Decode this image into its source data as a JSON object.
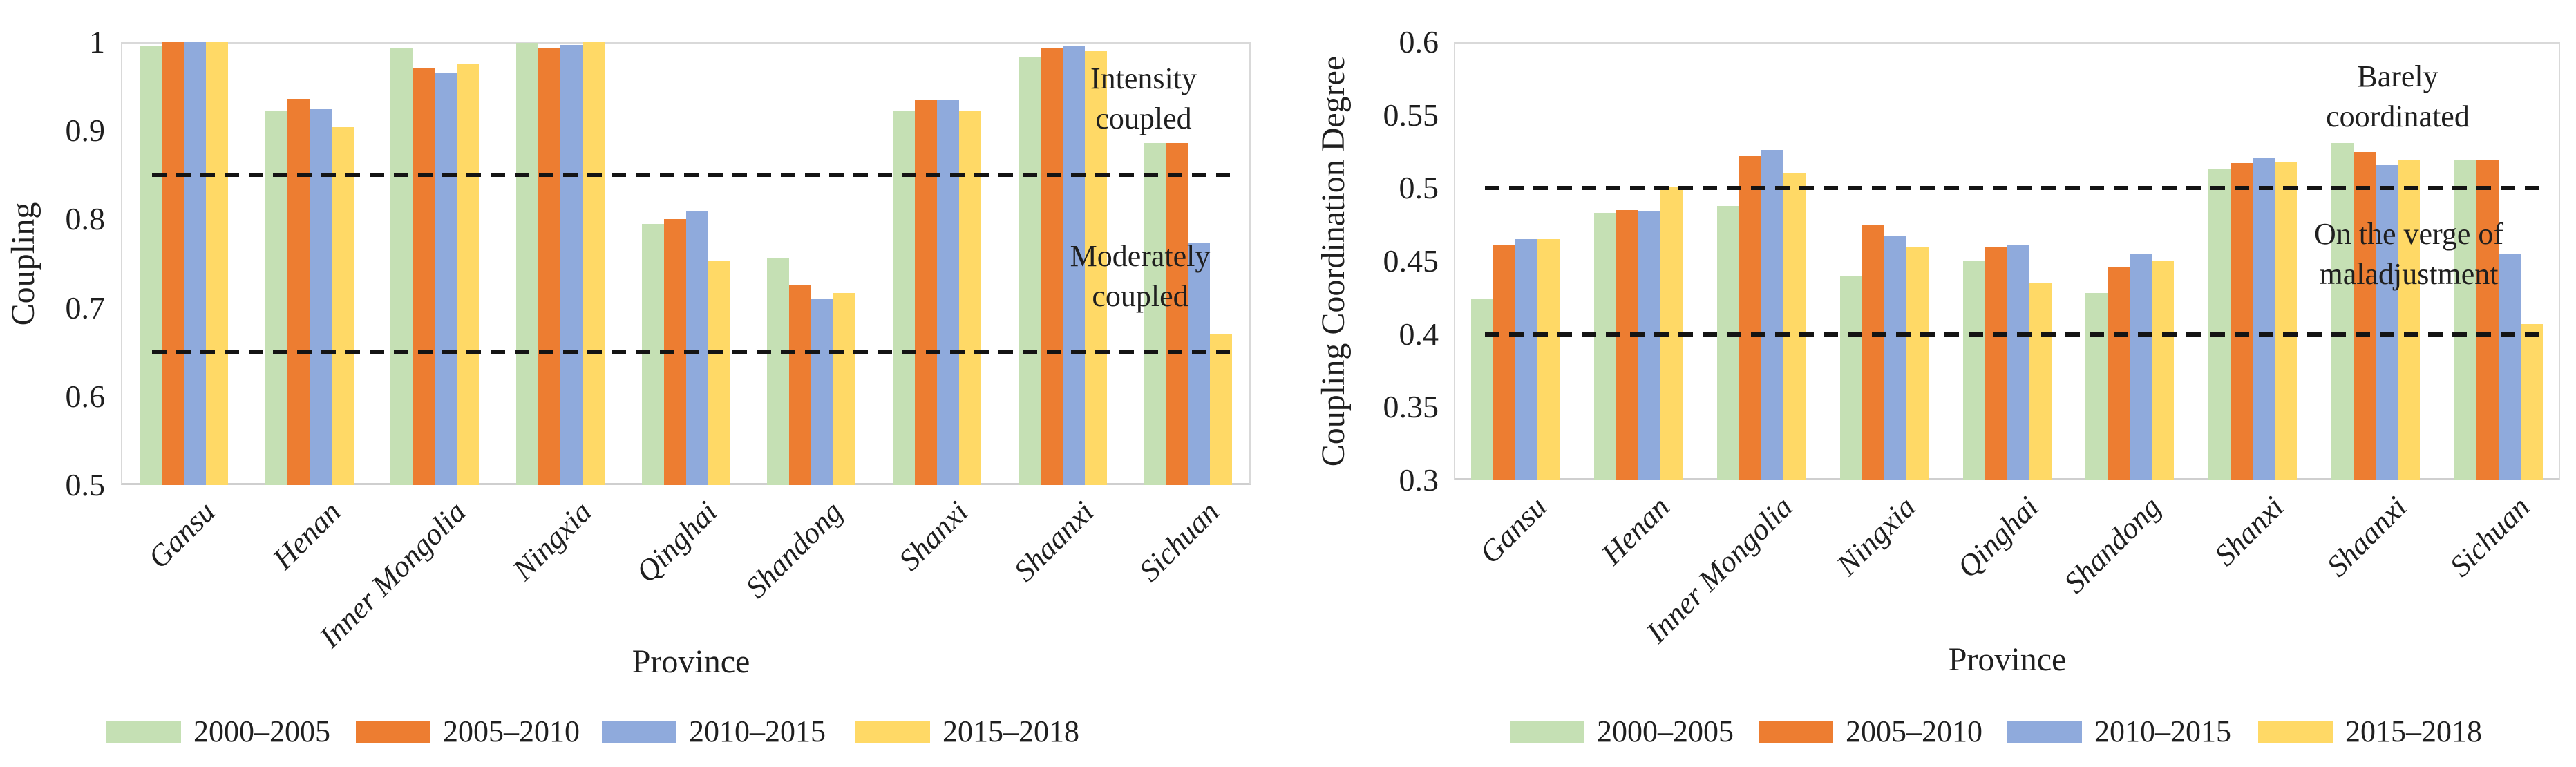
{
  "figure": {
    "background": "#ffffff",
    "text_color": "#1f1f1f"
  },
  "legend": {
    "labels": [
      "2000–2005",
      "2005–2010",
      "2010–2015",
      "2015–2018"
    ],
    "colors": [
      "#c5e0b4",
      "#ed7d31",
      "#8faadc",
      "#ffd966"
    ]
  },
  "chart_data": [
    {
      "type": "bar",
      "title": "",
      "ylabel": "Coupling",
      "xlabel": "Province",
      "ylim": [
        0.5,
        1.0
      ],
      "ytick_labels": [
        "1",
        "0.9",
        "0.8",
        "0.7",
        "0.6",
        "0.5"
      ],
      "grid": false,
      "legend_position": "bottom",
      "categories": [
        "Gansu",
        "Henan",
        "Inner Mongolia",
        "Ningxia",
        "Qinghai",
        "Shandong",
        "Shanxi",
        "Shaanxi",
        "Sichuan"
      ],
      "series": [
        {
          "name": "2000–2005",
          "color": "#c5e0b4",
          "values": [
            0.995,
            0.923,
            0.993,
            0.999,
            0.795,
            0.756,
            0.922,
            0.984,
            0.886
          ]
        },
        {
          "name": "2005–2010",
          "color": "#ed7d31",
          "values": [
            1.0,
            0.936,
            0.97,
            0.993,
            0.8,
            0.726,
            0.935,
            0.993,
            0.886
          ]
        },
        {
          "name": "2010–2015",
          "color": "#8faadc",
          "values": [
            1.0,
            0.924,
            0.966,
            0.997,
            0.81,
            0.71,
            0.935,
            0.995,
            0.773
          ]
        },
        {
          "name": "2015–2018",
          "color": "#ffd966",
          "values": [
            1.0,
            0.904,
            0.975,
            1.0,
            0.753,
            0.717,
            0.922,
            0.99,
            0.671
          ]
        }
      ],
      "reference_lines": [
        {
          "value": 0.85,
          "style": "dashed",
          "color": "#141414"
        },
        {
          "value": 0.65,
          "style": "dashed",
          "color": "#141414"
        }
      ],
      "annotations": [
        {
          "lines": [
            "Intensity",
            "coupled"
          ]
        },
        {
          "lines": [
            "Moderately",
            "coupled"
          ]
        }
      ]
    },
    {
      "type": "bar",
      "title": "",
      "ylabel": "Coupling Coordination Degree",
      "xlabel": "Province",
      "ylim": [
        0.3,
        0.6
      ],
      "ytick_labels": [
        "0.6",
        "0.55",
        "0.5",
        "0.45",
        "0.4",
        "0.35",
        "0.3"
      ],
      "grid": false,
      "legend_position": "bottom",
      "categories": [
        "Gansu",
        "Henan",
        "Inner Mongolia",
        "Ningxia",
        "Qinghai",
        "Shandong",
        "Shanxi",
        "Shaanxi",
        "Sichuan"
      ],
      "series": [
        {
          "name": "2000–2005",
          "color": "#c5e0b4",
          "values": [
            0.424,
            0.483,
            0.488,
            0.44,
            0.45,
            0.428,
            0.513,
            0.531,
            0.519
          ]
        },
        {
          "name": "2005–2010",
          "color": "#ed7d31",
          "values": [
            0.461,
            0.485,
            0.522,
            0.475,
            0.46,
            0.446,
            0.517,
            0.525,
            0.519
          ]
        },
        {
          "name": "2010–2015",
          "color": "#8faadc",
          "values": [
            0.465,
            0.484,
            0.526,
            0.467,
            0.461,
            0.455,
            0.521,
            0.516,
            0.455
          ]
        },
        {
          "name": "2015–2018",
          "color": "#ffd966",
          "values": [
            0.465,
            0.501,
            0.51,
            0.46,
            0.435,
            0.45,
            0.518,
            0.519,
            0.407
          ]
        }
      ],
      "reference_lines": [
        {
          "value": 0.5,
          "style": "dashed",
          "color": "#141414"
        },
        {
          "value": 0.4,
          "style": "dashed",
          "color": "#141414"
        }
      ],
      "annotations": [
        {
          "lines": [
            "Barely",
            "coordinated"
          ]
        },
        {
          "lines": [
            "On the verge of",
            "maladjustment"
          ]
        }
      ]
    }
  ]
}
